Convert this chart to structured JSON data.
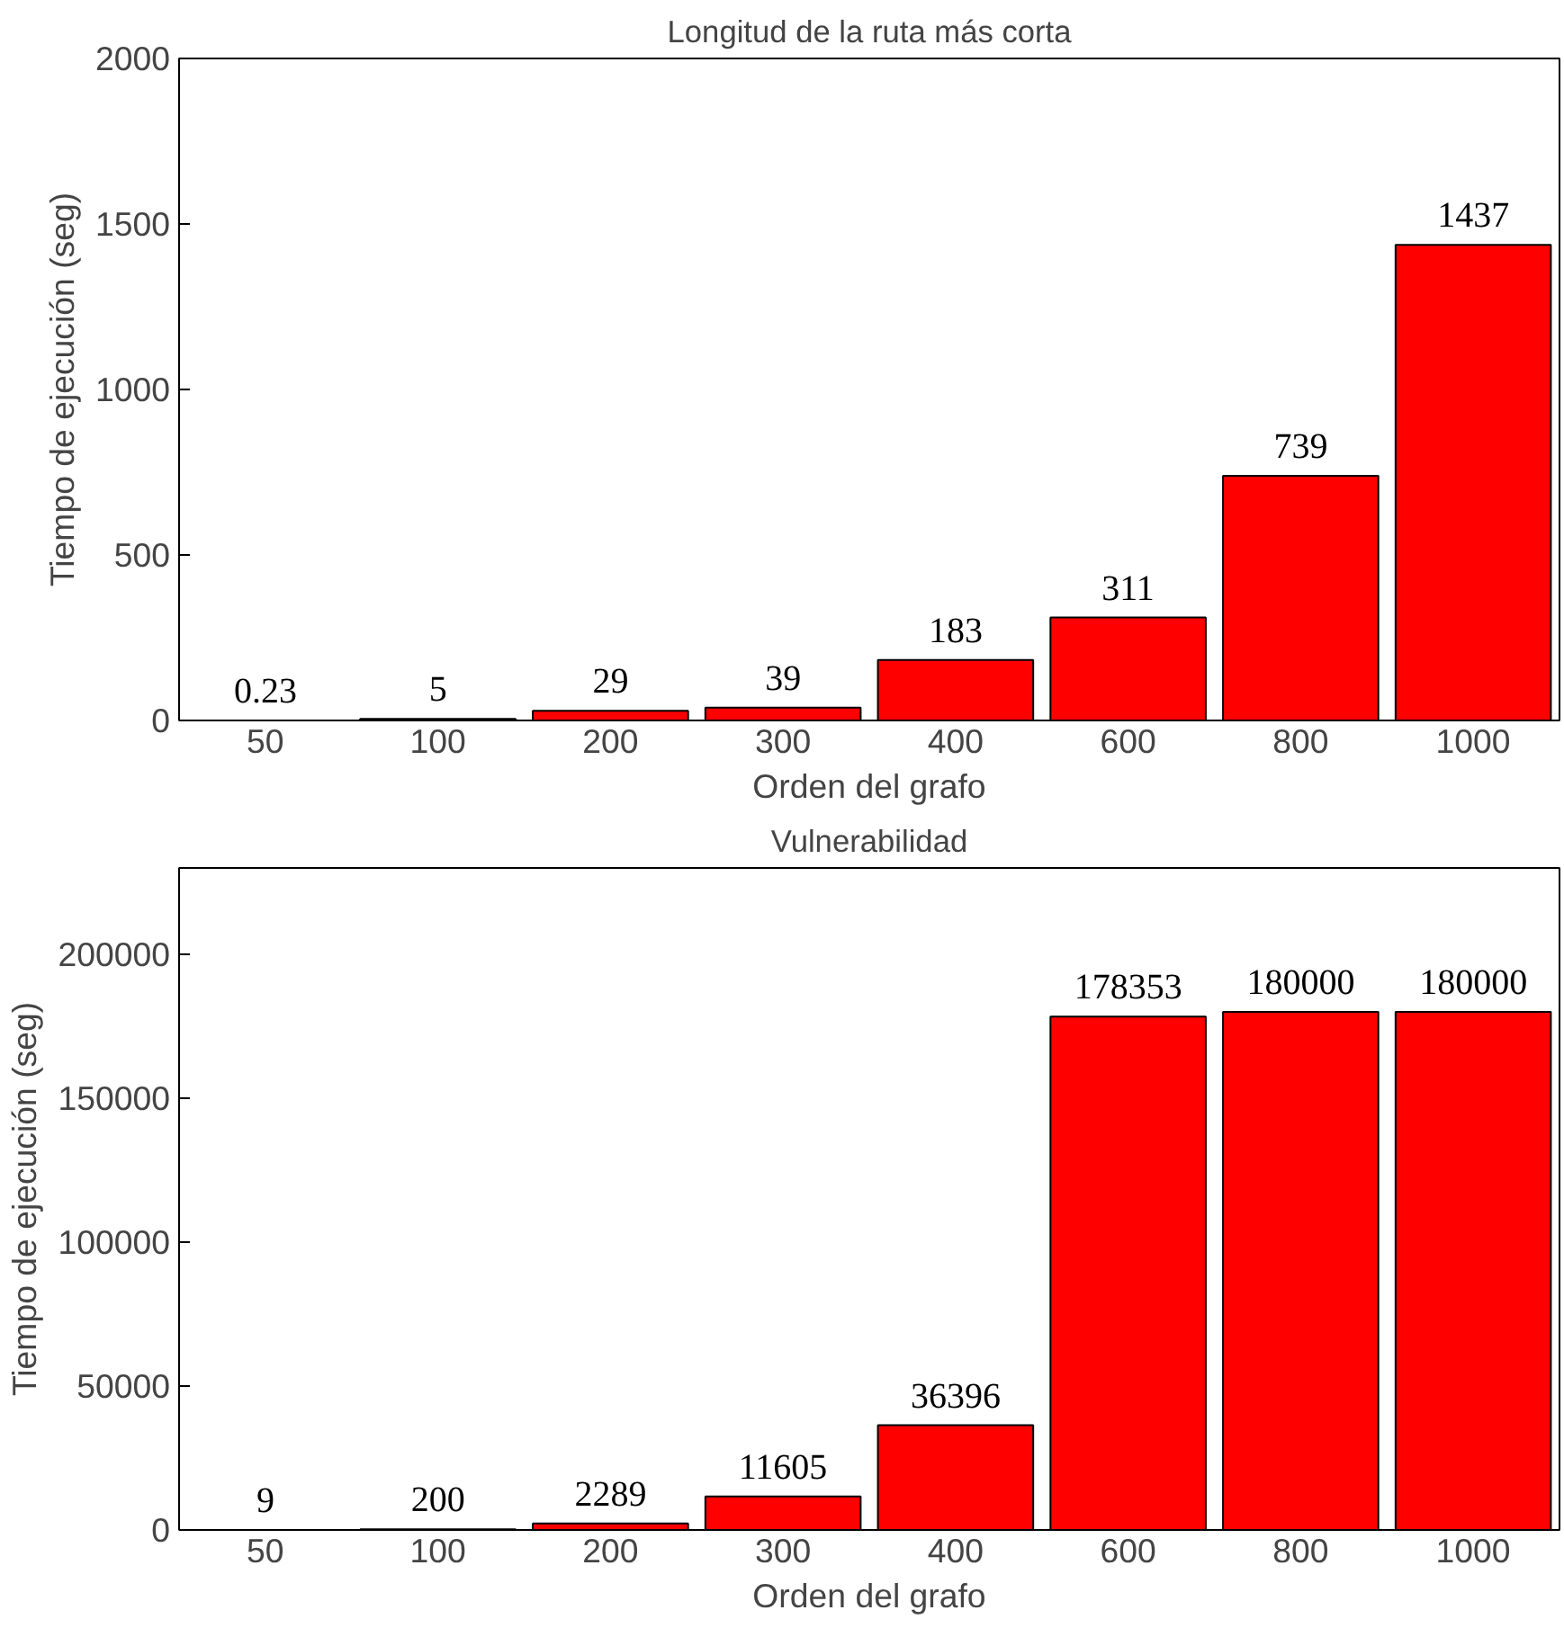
{
  "chart_data": [
    {
      "type": "bar",
      "title": "Longitud de la ruta más corta",
      "xlabel": "Orden del grafo",
      "ylabel": "Tiempo de ejecución (seg)",
      "categories": [
        "50",
        "100",
        "200",
        "300",
        "400",
        "600",
        "800",
        "1000"
      ],
      "values": [
        0.23,
        5,
        29,
        39,
        183,
        311,
        739,
        1437
      ],
      "color": "#ff0000",
      "ylim": [
        0,
        2000
      ],
      "yticks": [
        0,
        500,
        1000,
        1500,
        2000
      ],
      "grid": false,
      "data_labels": true
    },
    {
      "type": "bar",
      "title": "Vulnerabilidad",
      "xlabel": "Orden del grafo",
      "ylabel": "Tiempo de ejecución (seg)",
      "categories": [
        "50",
        "100",
        "200",
        "300",
        "400",
        "600",
        "800",
        "1000"
      ],
      "values": [
        9,
        200,
        2289,
        11605,
        36396,
        178353,
        180000,
        180000
      ],
      "color": "#ff0000",
      "ylim": [
        0,
        230000
      ],
      "yticks": [
        0,
        50000,
        100000,
        150000,
        200000
      ],
      "grid": false,
      "data_labels": true
    }
  ]
}
